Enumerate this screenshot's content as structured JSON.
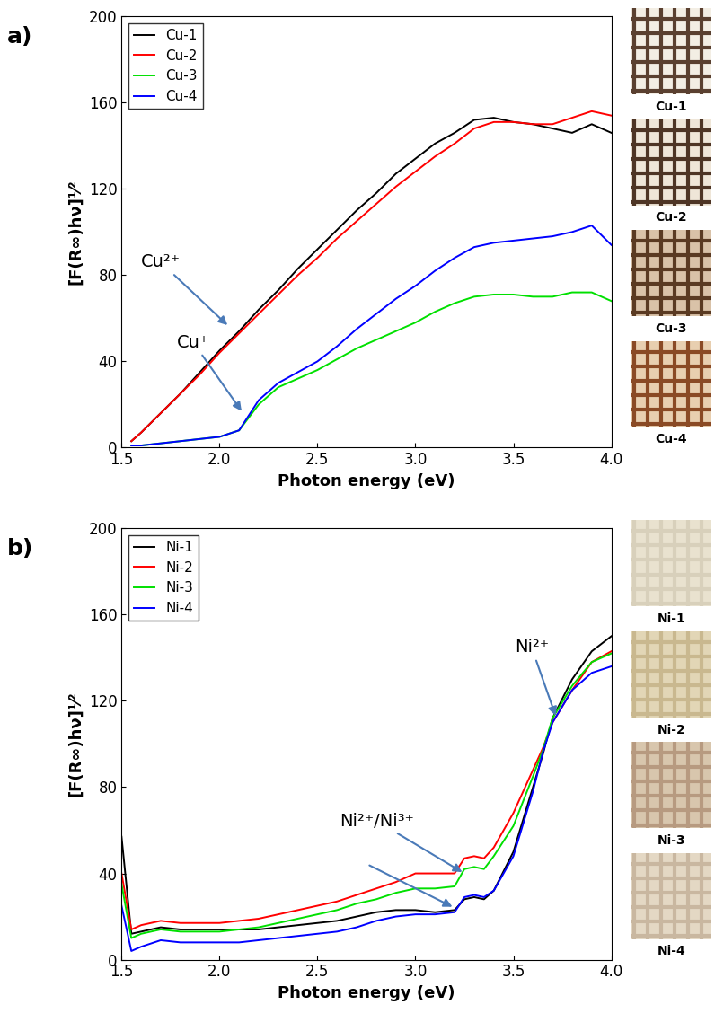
{
  "chart_data": [
    {
      "type": "line",
      "panel_label": "a)",
      "x_label": "Photon energy (eV)",
      "y_label": "[F(R∞)hν]¹⁄²",
      "xlim": [
        1.5,
        4.0
      ],
      "xticks": [
        1.5,
        2.0,
        2.5,
        3.0,
        3.5,
        4.0
      ],
      "ylim": [
        0,
        200
      ],
      "yticks": [
        0,
        40,
        80,
        120,
        160,
        200
      ],
      "legend": "upper left",
      "x": [
        1.55,
        1.6,
        1.7,
        1.8,
        1.9,
        2.0,
        2.1,
        2.2,
        2.3,
        2.4,
        2.5,
        2.6,
        2.7,
        2.8,
        2.9,
        3.0,
        3.1,
        3.2,
        3.3,
        3.4,
        3.5,
        3.6,
        3.7,
        3.8,
        3.9,
        4.0
      ],
      "series": [
        {
          "name": "Cu-1",
          "color": "#000000",
          "values": [
            3,
            7,
            16,
            25,
            35,
            45,
            54,
            64,
            73,
            83,
            92,
            101,
            110,
            118,
            127,
            134,
            141,
            146,
            152,
            153,
            151,
            150,
            148,
            146,
            150,
            146
          ]
        },
        {
          "name": "Cu-2",
          "color": "#ff0000",
          "values": [
            3,
            7,
            16,
            25,
            34,
            44,
            53,
            62,
            71,
            80,
            88,
            97,
            105,
            113,
            121,
            128,
            135,
            141,
            148,
            151,
            151,
            150,
            150,
            153,
            156,
            154
          ]
        },
        {
          "name": "Cu-3",
          "color": "#00e000",
          "values": [
            1,
            1,
            2,
            3,
            4,
            5,
            8,
            20,
            28,
            32,
            36,
            41,
            46,
            50,
            54,
            58,
            63,
            67,
            70,
            71,
            71,
            70,
            70,
            72,
            72,
            68
          ]
        },
        {
          "name": "Cu-4",
          "color": "#0000ff",
          "values": [
            1,
            1,
            2,
            3,
            4,
            5,
            8,
            22,
            30,
            35,
            40,
            47,
            55,
            62,
            69,
            75,
            82,
            88,
            93,
            95,
            96,
            97,
            98,
            100,
            103,
            94
          ]
        }
      ],
      "annotations": [
        {
          "text": "Cu²⁺",
          "targets": [
            [
              2.05,
              56
            ]
          ]
        },
        {
          "text": "Cu⁺",
          "targets": [
            [
              2.12,
              16
            ]
          ]
        }
      ],
      "photo_labels": [
        "Cu-1",
        "Cu-2",
        "Cu-3",
        "Cu-4"
      ]
    },
    {
      "type": "line",
      "panel_label": "b)",
      "x_label": "Photon energy (eV)",
      "y_label": "[F(R∞)hν]¹⁄²",
      "xlim": [
        1.5,
        4.0
      ],
      "xticks": [
        1.5,
        2.0,
        2.5,
        3.0,
        3.5,
        4.0
      ],
      "ylim": [
        0,
        200
      ],
      "yticks": [
        0,
        40,
        80,
        120,
        160,
        200
      ],
      "legend": "upper left",
      "x": [
        1.5,
        1.55,
        1.6,
        1.7,
        1.8,
        1.9,
        2.0,
        2.1,
        2.2,
        2.3,
        2.4,
        2.5,
        2.6,
        2.7,
        2.8,
        2.9,
        3.0,
        3.1,
        3.2,
        3.25,
        3.3,
        3.35,
        3.4,
        3.5,
        3.6,
        3.65,
        3.7,
        3.8,
        3.9,
        4.0
      ],
      "series": [
        {
          "name": "Ni-1",
          "color": "#000000",
          "values": [
            57,
            12,
            13,
            15,
            14,
            14,
            14,
            14,
            14,
            15,
            16,
            17,
            18,
            20,
            22,
            23,
            23,
            22,
            23,
            28,
            29,
            28,
            32,
            50,
            80,
            95,
            112,
            130,
            143,
            150
          ]
        },
        {
          "name": "Ni-2",
          "color": "#ff0000",
          "values": [
            40,
            14,
            16,
            18,
            17,
            17,
            17,
            18,
            19,
            21,
            23,
            25,
            27,
            30,
            33,
            36,
            40,
            40,
            40,
            47,
            48,
            47,
            52,
            68,
            88,
            98,
            110,
            125,
            138,
            143
          ]
        },
        {
          "name": "Ni-3",
          "color": "#00e000",
          "values": [
            35,
            10,
            12,
            14,
            13,
            13,
            13,
            14,
            15,
            17,
            19,
            21,
            23,
            26,
            28,
            31,
            33,
            33,
            34,
            42,
            43,
            42,
            48,
            62,
            85,
            97,
            112,
            127,
            138,
            142
          ]
        },
        {
          "name": "Ni-4",
          "color": "#0000ff",
          "values": [
            25,
            4,
            6,
            9,
            8,
            8,
            8,
            8,
            9,
            10,
            11,
            12,
            13,
            15,
            18,
            20,
            21,
            21,
            22,
            29,
            30,
            29,
            32,
            48,
            78,
            96,
            110,
            125,
            133,
            136
          ]
        }
      ],
      "annotations": [
        {
          "text": "Ni²⁺",
          "targets": [
            [
              3.72,
              112
            ]
          ]
        },
        {
          "text": "Ni²⁺/Ni³⁺",
          "targets": [
            [
              3.25,
              40
            ],
            [
              3.2,
              24
            ]
          ]
        }
      ],
      "photo_labels": [
        "Ni-1",
        "Ni-2",
        "Ni-3",
        "Ni-4"
      ]
    }
  ]
}
